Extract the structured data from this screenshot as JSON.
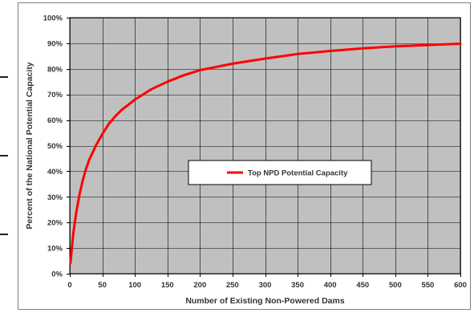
{
  "chart_data": {
    "type": "line",
    "title": "",
    "xlabel": "Number of Existing Non-Powered Dams",
    "ylabel": "Percent of the National Potential Capacity",
    "xlim": [
      0,
      600
    ],
    "ylim": [
      0,
      100
    ],
    "x_ticks": [
      "0",
      "50",
      "100",
      "150",
      "200",
      "250",
      "300",
      "350",
      "400",
      "450",
      "500",
      "550",
      "600"
    ],
    "y_ticks": [
      "0%",
      "10%",
      "20%",
      "30%",
      "40%",
      "50%",
      "60%",
      "70%",
      "80%",
      "90%",
      "100%"
    ],
    "grid": true,
    "legend_position": "center-right",
    "series": [
      {
        "name": "Top NPD Potential Capacity",
        "color": "#ff0000",
        "x": [
          1,
          5,
          10,
          15,
          20,
          25,
          30,
          40,
          50,
          60,
          70,
          80,
          90,
          100,
          125,
          150,
          175,
          200,
          250,
          300,
          350,
          400,
          450,
          500,
          550,
          600
        ],
        "y": [
          4,
          15,
          24,
          31,
          36.5,
          41,
          44.5,
          50,
          54.5,
          58.5,
          61.5,
          64,
          66,
          68,
          72,
          75,
          77.5,
          79.5,
          82,
          84,
          85.8,
          87,
          88,
          88.8,
          89.3,
          89.8
        ]
      }
    ],
    "colors": {
      "plot_background": "#c0c0c0",
      "grid": "#000000",
      "frame": "#7f7f7f"
    }
  }
}
